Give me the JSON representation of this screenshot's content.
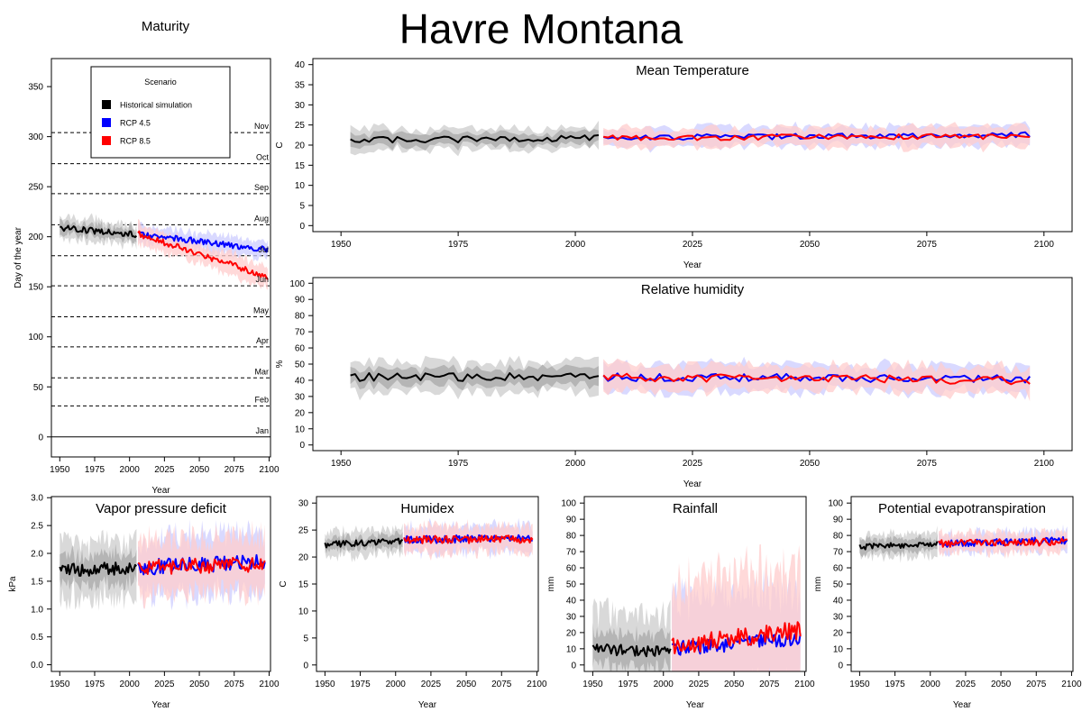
{
  "suptitle": "Havre Montana",
  "colors": {
    "historical": "#000000",
    "rcp45": "#0000ff",
    "rcp85": "#ff0000",
    "historical_band_outer": "#d9d9d9",
    "historical_band_inner": "#b5b5b5",
    "rcp45_band": "#ccccff",
    "rcp85_band": "#ffcccc"
  },
  "legend": {
    "title": "Scenario",
    "entries": [
      {
        "label": "Historical simulation",
        "color": "#000000"
      },
      {
        "label": "RCP 4.5",
        "color": "#0000ff"
      },
      {
        "label": "RCP 8.5",
        "color": "#ff0000"
      }
    ]
  },
  "chart_data": [
    {
      "id": "maturity",
      "type": "line",
      "title": "Maturity",
      "xlabel": "Year",
      "ylabel": "Day of the year",
      "xlim": [
        1944,
        2101
      ],
      "ylim": [
        -20,
        378
      ],
      "xticks": [
        1950,
        1975,
        2000,
        2025,
        2050,
        2075,
        2100
      ],
      "yticks": [
        0,
        50,
        100,
        150,
        200,
        250,
        300,
        350
      ],
      "month_lines": [
        {
          "label": "Jan",
          "day": 0,
          "solid": true
        },
        {
          "label": "Feb",
          "day": 31
        },
        {
          "label": "Mar",
          "day": 59
        },
        {
          "label": "Apr",
          "day": 90
        },
        {
          "label": "May",
          "day": 120
        },
        {
          "label": "Jun",
          "day": 151
        },
        {
          "label": "Jul",
          "day": 181
        },
        {
          "label": "Aug",
          "day": 212
        },
        {
          "label": "Sep",
          "day": 243
        },
        {
          "label": "Oct",
          "day": 273
        },
        {
          "label": "Nov",
          "day": 304
        }
      ],
      "series": [
        {
          "name": "Historical simulation",
          "key": "historical",
          "start": 1950,
          "end": 2005,
          "from": 209,
          "to": 202,
          "noise": 3,
          "band_inner": 6,
          "band_outer": 11
        },
        {
          "name": "RCP 4.5",
          "key": "rcp45",
          "start": 2006,
          "end": 2099,
          "from": 203,
          "to": 187,
          "noise": 3,
          "band_inner": 8,
          "band_outer": 8
        },
        {
          "name": "RCP 8.5",
          "key": "rcp85",
          "start": 2006,
          "end": 2099,
          "from": 203,
          "to": 160,
          "noise": 3,
          "band_inner": 10,
          "band_outer": 10
        }
      ]
    },
    {
      "id": "mean-temperature",
      "type": "line",
      "title": "Mean Temperature",
      "xlabel": "Year",
      "ylabel": "C",
      "xlim": [
        1944,
        2106
      ],
      "ylim": [
        -1.5,
        41.5
      ],
      "xticks": [
        1950,
        1975,
        2000,
        2025,
        2050,
        2075,
        2100
      ],
      "yticks": [
        0,
        5,
        10,
        15,
        20,
        25,
        30,
        35,
        40
      ],
      "series": [
        {
          "name": "Historical simulation",
          "key": "historical",
          "start": 1952,
          "end": 2005,
          "from": 21.2,
          "to": 21.8,
          "noise": 0.8,
          "band_inner": 1.5,
          "band_outer": 2.6
        },
        {
          "name": "RCP 4.5",
          "key": "rcp45",
          "start": 2006,
          "end": 2097,
          "from": 21.8,
          "to": 22.6,
          "noise": 0.7,
          "band_inner": 2.4,
          "band_outer": 2.4
        },
        {
          "name": "RCP 8.5",
          "key": "rcp85",
          "start": 2006,
          "end": 2097,
          "from": 21.8,
          "to": 22.2,
          "noise": 0.7,
          "band_inner": 2.4,
          "band_outer": 2.4
        }
      ]
    },
    {
      "id": "relative-humidity",
      "type": "line",
      "title": "Relative humidity",
      "xlabel": "Year",
      "ylabel": "%",
      "xlim": [
        1944,
        2106
      ],
      "ylim": [
        -3.5,
        103.5
      ],
      "xticks": [
        1950,
        1975,
        2000,
        2025,
        2050,
        2075,
        2100
      ],
      "yticks": [
        0,
        10,
        20,
        30,
        40,
        50,
        60,
        70,
        80,
        90,
        100
      ],
      "series": [
        {
          "name": "Historical simulation",
          "key": "historical",
          "start": 1952,
          "end": 2005,
          "from": 42,
          "to": 42,
          "noise": 2.5,
          "band_inner": 5,
          "band_outer": 9
        },
        {
          "name": "RCP 4.5",
          "key": "rcp45",
          "start": 2006,
          "end": 2097,
          "from": 42,
          "to": 41,
          "noise": 2.5,
          "band_inner": 8,
          "band_outer": 8
        },
        {
          "name": "RCP 8.5",
          "key": "rcp85",
          "start": 2006,
          "end": 2097,
          "from": 42,
          "to": 40,
          "noise": 2.5,
          "band_inner": 8,
          "band_outer": 8
        }
      ]
    },
    {
      "id": "vapor-pressure-deficit",
      "type": "line",
      "title": "Vapor pressure deficit",
      "xlabel": "Year",
      "ylabel": "kPa",
      "xlim": [
        1944,
        2101
      ],
      "ylim": [
        -0.12,
        3.02
      ],
      "xticks": [
        1950,
        1975,
        2000,
        2025,
        2050,
        2075,
        2100
      ],
      "yticks": [
        0.0,
        0.5,
        1.0,
        1.5,
        2.0,
        2.5,
        3.0
      ],
      "series": [
        {
          "name": "Historical simulation",
          "key": "historical",
          "start": 1950,
          "end": 2005,
          "from": 1.7,
          "to": 1.75,
          "noise": 0.12,
          "band_inner": 0.25,
          "band_outer": 0.5
        },
        {
          "name": "RCP 4.5",
          "key": "rcp45",
          "start": 2006,
          "end": 2097,
          "from": 1.75,
          "to": 1.85,
          "noise": 0.14,
          "band_inner": 0.5,
          "band_outer": 0.5
        },
        {
          "name": "RCP 8.5",
          "key": "rcp85",
          "start": 2006,
          "end": 2097,
          "from": 1.75,
          "to": 1.8,
          "noise": 0.14,
          "band_inner": 0.5,
          "band_outer": 0.5
        }
      ]
    },
    {
      "id": "humidex",
      "type": "line",
      "title": "Humidex",
      "xlabel": "Year",
      "ylabel": "C",
      "xlim": [
        1944,
        2101
      ],
      "ylim": [
        -1.2,
        31.2
      ],
      "xticks": [
        1950,
        1975,
        2000,
        2025,
        2050,
        2075,
        2100
      ],
      "yticks": [
        0,
        5,
        10,
        15,
        20,
        25,
        30
      ],
      "series": [
        {
          "name": "Historical simulation",
          "key": "historical",
          "start": 1950,
          "end": 2005,
          "from": 22.3,
          "to": 23.0,
          "noise": 0.6,
          "band_inner": 1.2,
          "band_outer": 2.2
        },
        {
          "name": "RCP 4.5",
          "key": "rcp45",
          "start": 2006,
          "end": 2097,
          "from": 23.2,
          "to": 23.5,
          "noise": 0.7,
          "band_inner": 2.4,
          "band_outer": 2.4
        },
        {
          "name": "RCP 8.5",
          "key": "rcp85",
          "start": 2006,
          "end": 2097,
          "from": 23.2,
          "to": 23.3,
          "noise": 0.7,
          "band_inner": 2.4,
          "band_outer": 2.4
        }
      ]
    },
    {
      "id": "rainfall",
      "type": "line",
      "title": "Rainfall",
      "xlabel": "Year",
      "ylabel": "mm",
      "xlim": [
        1944,
        2101
      ],
      "ylim": [
        -4,
        104
      ],
      "xticks": [
        1950,
        1975,
        2000,
        2025,
        2050,
        2075,
        2100
      ],
      "yticks": [
        0,
        10,
        20,
        30,
        40,
        50,
        60,
        70,
        80,
        90,
        100
      ],
      "series": [
        {
          "name": "Historical simulation",
          "key": "historical",
          "start": 1950,
          "end": 2005,
          "from": 10,
          "to": 8,
          "noise": 3.5,
          "band_inner": 10,
          "band_outer": 22
        },
        {
          "name": "RCP 4.5",
          "key": "rcp45",
          "start": 2006,
          "end": 2097,
          "from": 10,
          "to": 16,
          "noise": 4.5,
          "band_inner": 30,
          "band_outer": 30
        },
        {
          "name": "RCP 8.5",
          "key": "rcp85",
          "start": 2006,
          "end": 2097,
          "from": 11,
          "to": 22,
          "noise": 6,
          "band_inner": 40,
          "band_outer": 40
        }
      ]
    },
    {
      "id": "potential-evapotranspiration",
      "type": "line",
      "title": "Potential evapotranspiration",
      "xlabel": "Year",
      "ylabel": "mm",
      "xlim": [
        1944,
        2101
      ],
      "ylim": [
        -4,
        104
      ],
      "xticks": [
        1950,
        1975,
        2000,
        2025,
        2050,
        2075,
        2100
      ],
      "yticks": [
        0,
        10,
        20,
        30,
        40,
        50,
        60,
        70,
        80,
        90,
        100
      ],
      "series": [
        {
          "name": "Historical simulation",
          "key": "historical",
          "start": 1950,
          "end": 2005,
          "from": 73,
          "to": 75,
          "noise": 1.8,
          "band_inner": 4,
          "band_outer": 7
        },
        {
          "name": "RCP 4.5",
          "key": "rcp45",
          "start": 2006,
          "end": 2097,
          "from": 75,
          "to": 77,
          "noise": 2.2,
          "band_inner": 6,
          "band_outer": 6
        },
        {
          "name": "RCP 8.5",
          "key": "rcp85",
          "start": 2006,
          "end": 2097,
          "from": 75,
          "to": 76,
          "noise": 2.2,
          "band_inner": 6,
          "band_outer": 6
        }
      ]
    }
  ]
}
